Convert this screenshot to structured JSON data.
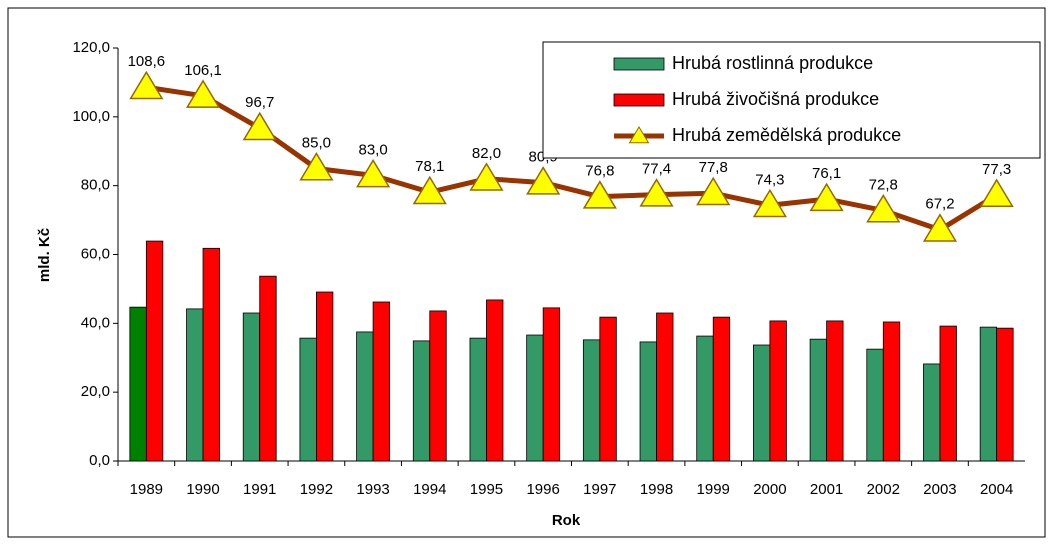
{
  "chart_data": {
    "type": "bar",
    "x_label": "Rok",
    "y_label": "mld. Kč",
    "categories": [
      "1989",
      "1990",
      "1991",
      "1992",
      "1993",
      "1994",
      "1995",
      "1996",
      "1997",
      "1998",
      "1999",
      "2000",
      "2001",
      "2002",
      "2003",
      "2004"
    ],
    "series": [
      {
        "name": "Hrubá rostlinná produkce",
        "type": "bar",
        "color": "#339966",
        "colors": [
          "#008000",
          "#339966",
          "#339966",
          "#339966",
          "#339966",
          "#339966",
          "#339966",
          "#339966",
          "#339966",
          "#339966",
          "#339966",
          "#339966",
          "#339966",
          "#339966",
          "#339966",
          "#339966"
        ],
        "values": [
          44.7,
          44.2,
          43.0,
          35.7,
          37.5,
          34.9,
          35.7,
          36.6,
          35.2,
          34.6,
          36.3,
          33.7,
          35.4,
          32.5,
          28.2,
          38.9
        ]
      },
      {
        "name": "Hrubá živočišná produkce",
        "type": "bar",
        "color": "#ff0000",
        "values": [
          63.9,
          61.8,
          53.7,
          49.1,
          46.2,
          43.6,
          46.8,
          44.5,
          41.8,
          43.0,
          41.8,
          40.7,
          40.7,
          40.4,
          39.2,
          38.6
        ]
      },
      {
        "name": "Hrubá zemědělská produkce",
        "type": "line",
        "color": "#993300",
        "marker_color": "#ffff00",
        "values": [
          108.6,
          106.1,
          96.7,
          85.0,
          83.0,
          78.1,
          82.0,
          80.9,
          76.8,
          77.4,
          77.8,
          74.3,
          76.1,
          72.8,
          67.2,
          77.3
        ],
        "value_labels": [
          "108,6",
          "106,1",
          "96,7",
          "85,0",
          "83,0",
          "78,1",
          "82,0",
          "80,9",
          "76,8",
          "77,4",
          "77,8",
          "74,3",
          "76,1",
          "72,8",
          "67,2",
          "77,3"
        ]
      }
    ],
    "ylim": [
      0,
      120
    ],
    "yticks": [
      {
        "value": 0,
        "label": "0,0"
      },
      {
        "value": 20,
        "label": "20,0"
      },
      {
        "value": 40,
        "label": "40,0"
      },
      {
        "value": 60,
        "label": "60,0"
      },
      {
        "value": 80,
        "label": "80,0"
      },
      {
        "value": 100,
        "label": "100,0"
      },
      {
        "value": 120,
        "label": "120,0"
      }
    ],
    "grid": false,
    "legend": "top-right"
  }
}
